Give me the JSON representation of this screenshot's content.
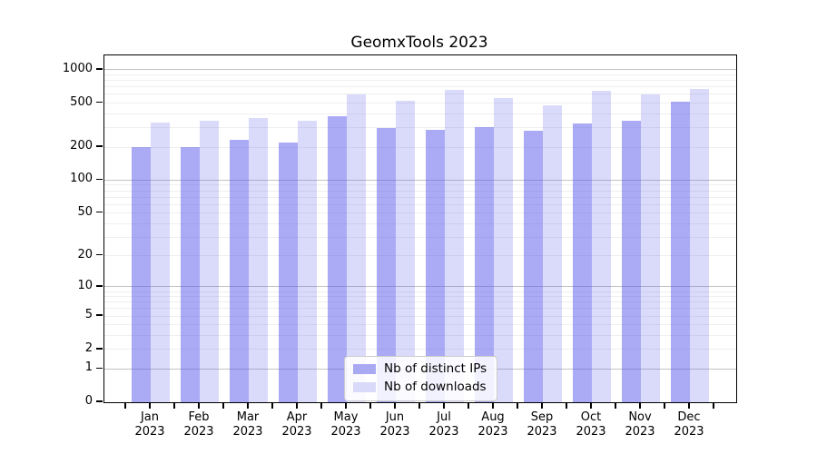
{
  "chart": {
    "title_note": "see chart_data.title"
  },
  "chart_data": {
    "type": "bar",
    "title": "GeomxTools 2023",
    "year_label": "2023",
    "categories": [
      "Jan",
      "Feb",
      "Mar",
      "Apr",
      "May",
      "Jun",
      "Jul",
      "Aug",
      "Sep",
      "Oct",
      "Nov",
      "Dec"
    ],
    "series": [
      {
        "name": "Nb of distinct IPs",
        "swatch_color": "#a8a8f3",
        "fill": "rgba(85,85,235,0.50)",
        "values": [
          200,
          201,
          232,
          220,
          380,
          296,
          289,
          306,
          284,
          326,
          345,
          515
        ]
      },
      {
        "name": "Nb of downloads",
        "swatch_color": "#d9d9f9",
        "fill": "rgba(85,85,235,0.22)",
        "values": [
          336,
          347,
          369,
          345,
          605,
          521,
          660,
          554,
          474,
          652,
          602,
          669
        ]
      }
    ],
    "yscale": "log1p",
    "yticks": [
      1000,
      500,
      200,
      100,
      50,
      20,
      10,
      5,
      2,
      1,
      0
    ],
    "ylim": [
      0,
      1100
    ],
    "xlabel": "",
    "ylabel": "",
    "grid": true,
    "legend_position": "lower center",
    "grid_major_color": "#c3c3c3",
    "grid_minor_color": "#efefef"
  }
}
